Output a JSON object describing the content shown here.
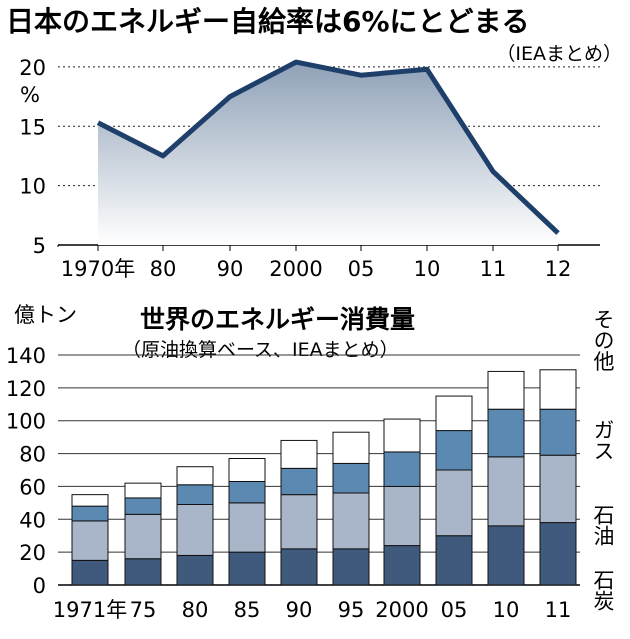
{
  "chart_data": [
    {
      "type": "area",
      "title": "日本のエネルギー自給率は6%にとどまる",
      "source": "（IEAまとめ）",
      "ylabel": "%",
      "x": [
        "1970年",
        "80",
        "90",
        "2000",
        "05",
        "10",
        "11",
        "12"
      ],
      "values": [
        15.3,
        12.5,
        17.5,
        20.4,
        19.3,
        19.8,
        11.2,
        6.0
      ],
      "ylim": [
        5,
        21
      ],
      "yticks": [
        5,
        10,
        15,
        20
      ],
      "grid": "dotted",
      "colors": {
        "line": "#1f3f6b",
        "fill_top": "#8fa1b7",
        "fill_bottom": "#ffffff"
      }
    },
    {
      "type": "bar",
      "stacked": true,
      "title": "世界のエネルギー消費量",
      "subtitle": "（原油換算ベース、IEAまとめ）",
      "ylabel": "億トン",
      "categories": [
        "1971年",
        "75",
        "80",
        "85",
        "90",
        "95",
        "2000",
        "05",
        "10",
        "11"
      ],
      "yticks": [
        0,
        20,
        40,
        60,
        80,
        100,
        120,
        140
      ],
      "ylim": [
        0,
        140
      ],
      "series": [
        {
          "name": "石炭",
          "values": [
            15,
            16,
            18,
            20,
            22,
            22,
            24,
            30,
            36,
            38
          ],
          "color": "#3f5a7d"
        },
        {
          "name": "石油",
          "values": [
            24,
            27,
            31,
            30,
            33,
            34,
            36,
            40,
            42,
            41
          ],
          "color": "#a9b5c9"
        },
        {
          "name": "ガス",
          "values": [
            9,
            10,
            12,
            13,
            16,
            18,
            21,
            24,
            29,
            28
          ],
          "color": "#5b89b1"
        },
        {
          "name": "その他",
          "values": [
            7,
            9,
            11,
            14,
            17,
            19,
            20,
            21,
            23,
            24
          ],
          "color": "#ffffff"
        }
      ]
    }
  ]
}
